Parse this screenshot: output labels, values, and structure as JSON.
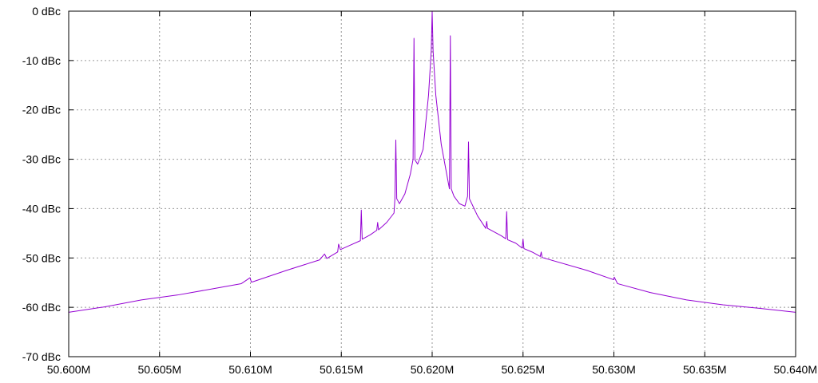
{
  "chart_data": {
    "type": "line",
    "title": "",
    "xlabel": "",
    "ylabel": "",
    "xlim": [
      50.6,
      50.64
    ],
    "ylim": [
      -70,
      0
    ],
    "grid": true,
    "legend": "none",
    "x_ticks": [
      50.6,
      50.605,
      50.61,
      50.615,
      50.62,
      50.625,
      50.63,
      50.635,
      50.64
    ],
    "x_tick_labels": [
      "50.600M",
      "50.605M",
      "50.610M",
      "50.615M",
      "50.620M",
      "50.625M",
      "50.630M",
      "50.635M",
      "50.640M"
    ],
    "y_ticks": [
      0,
      -10,
      -20,
      -30,
      -40,
      -50,
      -60,
      -70
    ],
    "y_tick_labels": [
      "0 dBc",
      "-10 dBc",
      "-20 dBc",
      "-30 dBc",
      "-40 dBc",
      "-50 dBc",
      "-60 dBc",
      "-70 dBc"
    ],
    "colors": {
      "series": "#9400d3",
      "grid": "#999999",
      "frame": "#000000"
    },
    "series": [
      {
        "x": [
          50.6,
          50.602,
          50.604,
          50.606,
          50.608,
          50.6095,
          50.60998,
          50.61005,
          50.61015,
          50.612,
          50.6138,
          50.61408,
          50.6142,
          50.6148,
          50.61485,
          50.61495,
          50.6155,
          50.61605,
          50.6161,
          50.61615,
          50.6166,
          50.61695,
          50.617,
          50.61705,
          50.6175,
          50.6179,
          50.61795,
          50.618,
          50.61805,
          50.6182,
          50.6185,
          50.6188,
          50.61895,
          50.619,
          50.61905,
          50.6192,
          50.6195,
          50.6198,
          50.61995,
          50.62,
          50.62005,
          50.6202,
          50.6205,
          50.6208,
          50.62095,
          50.621,
          50.62105,
          50.6212,
          50.6215,
          50.6218,
          50.62195,
          50.622,
          50.62205,
          50.6225,
          50.62295,
          50.623,
          50.62305,
          50.6238,
          50.62405,
          50.6241,
          50.62415,
          50.6246,
          50.62495,
          50.625,
          50.62505,
          50.6255,
          50.62595,
          50.626,
          50.62605,
          50.6285,
          50.62998,
          50.63002,
          50.6302,
          50.632,
          50.634,
          50.636,
          50.638,
          50.64
        ],
        "y": [
          -61.0,
          -59.9,
          -58.5,
          -57.5,
          -56.2,
          -55.2,
          -54.0,
          -54.9,
          -54.8,
          -52.5,
          -50.4,
          -49.2,
          -50.1,
          -48.8,
          -47.2,
          -48.3,
          -47.4,
          -46.5,
          -40.3,
          -46.2,
          -45.3,
          -44.4,
          -42.8,
          -44.3,
          -42.8,
          -40.9,
          -38.0,
          -26.1,
          -38.0,
          -39.0,
          -37.0,
          -33.0,
          -30.0,
          -5.5,
          -30.1,
          -31.0,
          -28.0,
          -17.0,
          -8.0,
          0.0,
          -8.0,
          -17.0,
          -27.0,
          -33.0,
          -36.0,
          -5.0,
          -36.0,
          -37.5,
          -39.0,
          -39.5,
          -37.5,
          -26.5,
          -38.0,
          -41.5,
          -44.0,
          -42.6,
          -44.0,
          -45.5,
          -46.1,
          -40.6,
          -46.3,
          -47.0,
          -48.0,
          -46.2,
          -48.1,
          -48.8,
          -49.7,
          -48.8,
          -49.9,
          -52.5,
          -54.4,
          -53.9,
          -55.2,
          -57.0,
          -58.5,
          -59.5,
          -60.2,
          -61.0
        ]
      }
    ]
  }
}
